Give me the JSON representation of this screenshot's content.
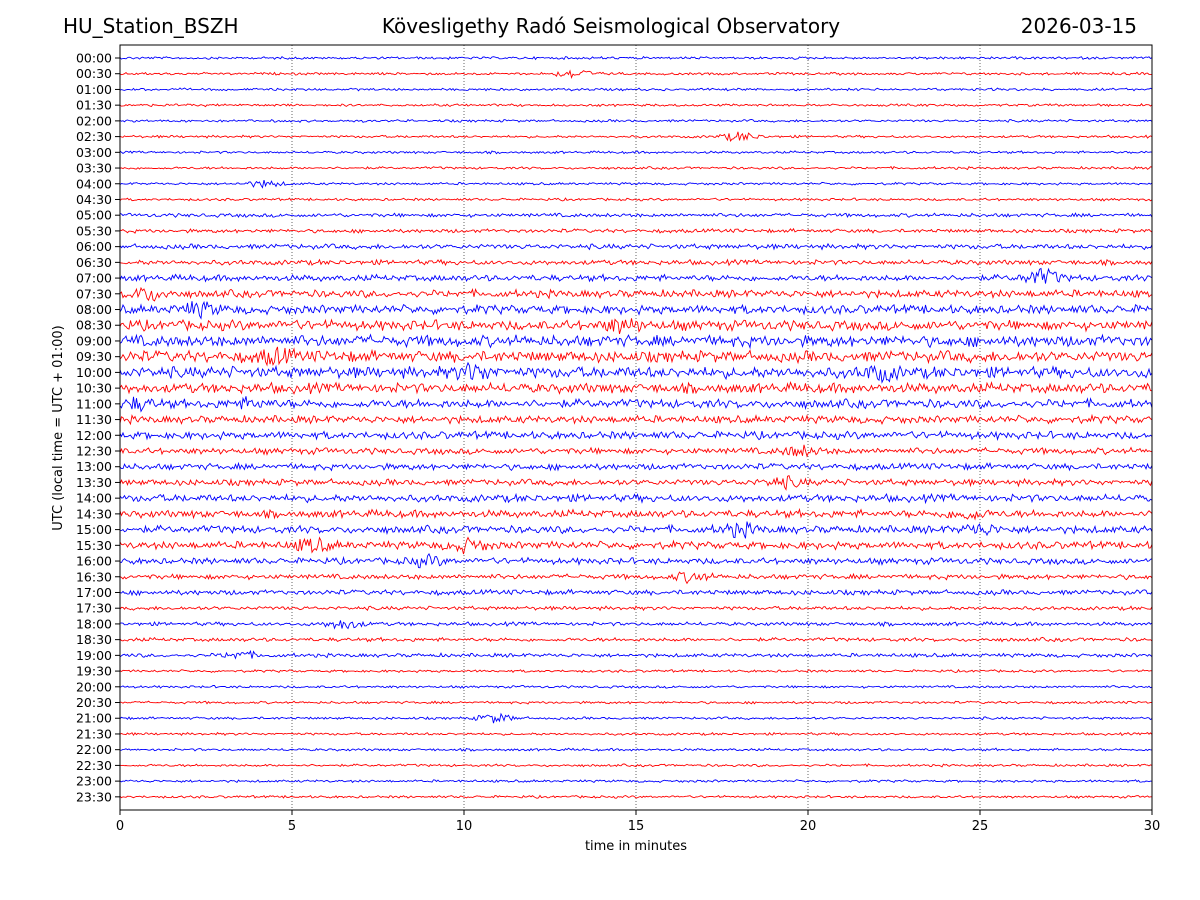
{
  "header": {
    "station": "HU_Station_BSZH",
    "observatory": "Kövesligethy Radó Seismological Observatory",
    "date": "2026-03-15"
  },
  "chart_data": {
    "type": "line",
    "title": "Kövesligethy Radó Seismological Observatory",
    "xlabel": "time in minutes",
    "ylabel": "UTC (local time = UTC + 01:00)",
    "xlim": [
      0,
      30
    ],
    "xticks": [
      0,
      5,
      10,
      15,
      20,
      25,
      30
    ],
    "grid": "vertical dotted at 5-minute ticks",
    "colors": [
      "#0000ff",
      "#ff0000"
    ],
    "rows": [
      "00:00",
      "00:30",
      "01:00",
      "01:30",
      "02:00",
      "02:30",
      "03:00",
      "03:30",
      "04:00",
      "04:30",
      "05:00",
      "05:30",
      "06:00",
      "06:30",
      "07:00",
      "07:30",
      "08:00",
      "08:30",
      "09:00",
      "09:30",
      "10:00",
      "10:30",
      "11:00",
      "11:30",
      "12:00",
      "12:30",
      "13:00",
      "13:30",
      "14:00",
      "14:30",
      "15:00",
      "15:30",
      "16:00",
      "16:30",
      "17:00",
      "17:30",
      "18:00",
      "18:30",
      "19:00",
      "19:30",
      "20:00",
      "20:30",
      "21:00",
      "21:30",
      "22:00",
      "22:30",
      "23:00",
      "23:30"
    ],
    "noise_level": [
      1,
      1,
      1,
      1,
      1,
      1,
      1,
      1,
      1,
      1,
      1.5,
      1.5,
      2,
      2,
      2.5,
      3,
      3.5,
      4,
      4.5,
      4.5,
      4.5,
      4,
      3.5,
      3,
      3,
      2.5,
      2.5,
      2.5,
      3,
      3,
      3,
      3,
      2.5,
      2,
      2,
      1.5,
      1.5,
      1.5,
      1.5,
      1,
      1,
      1,
      1,
      1,
      1,
      1,
      1,
      1
    ],
    "events": [
      {
        "row": "00:30",
        "minute": 13.2,
        "amplitude": 4
      },
      {
        "row": "02:30",
        "minute": 18.0,
        "amplitude": 4
      },
      {
        "row": "04:00",
        "minute": 4.2,
        "amplitude": 3
      },
      {
        "row": "07:00",
        "minute": 26.8,
        "amplitude": 7
      },
      {
        "row": "07:30",
        "minute": 0.8,
        "amplitude": 5
      },
      {
        "row": "08:00",
        "minute": 2.3,
        "amplitude": 5
      },
      {
        "row": "08:30",
        "minute": 14.6,
        "amplitude": 5
      },
      {
        "row": "09:30",
        "minute": 4.5,
        "amplitude": 5
      },
      {
        "row": "10:00",
        "minute": 10.3,
        "amplitude": 6
      },
      {
        "row": "10:00",
        "minute": 22.1,
        "amplitude": 5
      },
      {
        "row": "11:00",
        "minute": 0.5,
        "amplitude": 4
      },
      {
        "row": "11:00",
        "minute": 3.8,
        "amplitude": 3
      },
      {
        "row": "12:30",
        "minute": 19.8,
        "amplitude": 4
      },
      {
        "row": "13:30",
        "minute": 19.3,
        "amplitude": 4
      },
      {
        "row": "14:30",
        "minute": 24.6,
        "amplitude": 4
      },
      {
        "row": "15:00",
        "minute": 18.0,
        "amplitude": 5
      },
      {
        "row": "15:00",
        "minute": 25.0,
        "amplitude": 4
      },
      {
        "row": "15:30",
        "minute": 5.6,
        "amplitude": 5
      },
      {
        "row": "15:30",
        "minute": 10.1,
        "amplitude": 5
      },
      {
        "row": "16:00",
        "minute": 8.9,
        "amplitude": 4
      },
      {
        "row": "16:30",
        "minute": 16.6,
        "amplitude": 4
      },
      {
        "row": "18:00",
        "minute": 6.5,
        "amplitude": 4
      },
      {
        "row": "19:00",
        "minute": 3.5,
        "amplitude": 3
      },
      {
        "row": "21:00",
        "minute": 10.9,
        "amplitude": 4
      }
    ]
  }
}
